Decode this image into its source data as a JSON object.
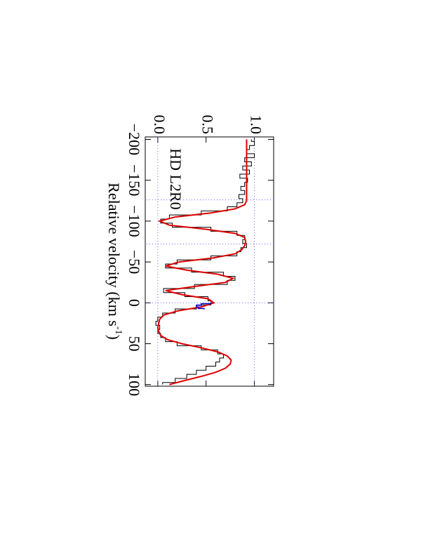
{
  "chart_data": {
    "type": "line",
    "annotation": "HD L2R0",
    "xlabel": "Relative velocity (km s",
    "xlabel_sup": "-1",
    "xlabel_end": ")",
    "x": [
      -200,
      -195,
      -190,
      -185,
      -180,
      -175,
      -170,
      -165,
      -160,
      -155,
      -150,
      -145,
      -140,
      -135,
      -130,
      -125,
      -120,
      -115,
      -110,
      -105,
      -100,
      -95,
      -90,
      -85,
      -80,
      -75,
      -70,
      -65,
      -60,
      -55,
      -50,
      -45,
      -40,
      -35,
      -30,
      -25,
      -20,
      -15,
      -10,
      -5,
      0,
      5,
      10,
      15,
      20,
      25,
      30,
      35,
      40,
      45,
      50,
      55,
      60,
      65,
      70,
      75,
      80,
      85,
      90,
      95,
      100
    ],
    "series": [
      {
        "style": "step",
        "color": "#000000",
        "values": [
          0.97,
          1.0,
          0.95,
          0.92,
          1.0,
          0.9,
          0.97,
          0.88,
          0.95,
          0.85,
          0.93,
          0.9,
          0.86,
          0.9,
          0.84,
          0.88,
          0.82,
          0.72,
          0.45,
          0.12,
          0.03,
          0.15,
          0.55,
          0.82,
          0.9,
          0.88,
          0.92,
          0.86,
          0.82,
          0.55,
          0.2,
          0.08,
          0.35,
          0.68,
          0.8,
          0.72,
          0.38,
          0.06,
          0.28,
          0.52,
          0.55,
          0.4,
          0.18,
          0.05,
          0.0,
          -0.02,
          0.02,
          0.0,
          0.03,
          0.08,
          0.2,
          0.45,
          0.62,
          0.68,
          0.64,
          0.6,
          0.5,
          0.4,
          0.3,
          0.18,
          0.05
        ]
      },
      {
        "style": "line",
        "color": "#dd0000",
        "values": [
          0.92,
          0.92,
          0.92,
          0.92,
          0.92,
          0.92,
          0.92,
          0.92,
          0.92,
          0.92,
          0.92,
          0.92,
          0.92,
          0.92,
          0.92,
          0.92,
          0.9,
          0.8,
          0.55,
          0.18,
          0.02,
          0.12,
          0.5,
          0.8,
          0.9,
          0.91,
          0.9,
          0.87,
          0.8,
          0.58,
          0.22,
          0.08,
          0.3,
          0.62,
          0.78,
          0.7,
          0.38,
          0.08,
          0.25,
          0.52,
          0.58,
          0.45,
          0.2,
          0.06,
          0.02,
          0.01,
          0.0,
          0.01,
          0.03,
          0.1,
          0.25,
          0.45,
          0.62,
          0.72,
          0.76,
          0.75,
          0.7,
          0.6,
          0.45,
          0.28,
          0.12
        ]
      }
    ],
    "highlight": {
      "color": "#0000cc",
      "x": [
        0,
        2,
        4,
        6,
        8
      ],
      "values": [
        0.55,
        0.45,
        0.4,
        0.42,
        0.48
      ]
    },
    "vlines": [
      -126,
      -72,
      0
    ],
    "hlines": [
      0,
      1
    ],
    "refline_color": "#6666ff",
    "xlim": [
      -203,
      102
    ],
    "ylim": [
      -0.13,
      1.2
    ],
    "xticks": [
      {
        "value": -200,
        "label": "−200"
      },
      {
        "value": -150,
        "label": "−150"
      },
      {
        "value": -100,
        "label": "−100"
      },
      {
        "value": -50,
        "label": "−50"
      },
      0,
      50,
      100
    ],
    "yticks": [
      {
        "value": 0,
        "label": "0.0"
      },
      0.5,
      {
        "value": 1,
        "label": "1.0"
      }
    ]
  }
}
